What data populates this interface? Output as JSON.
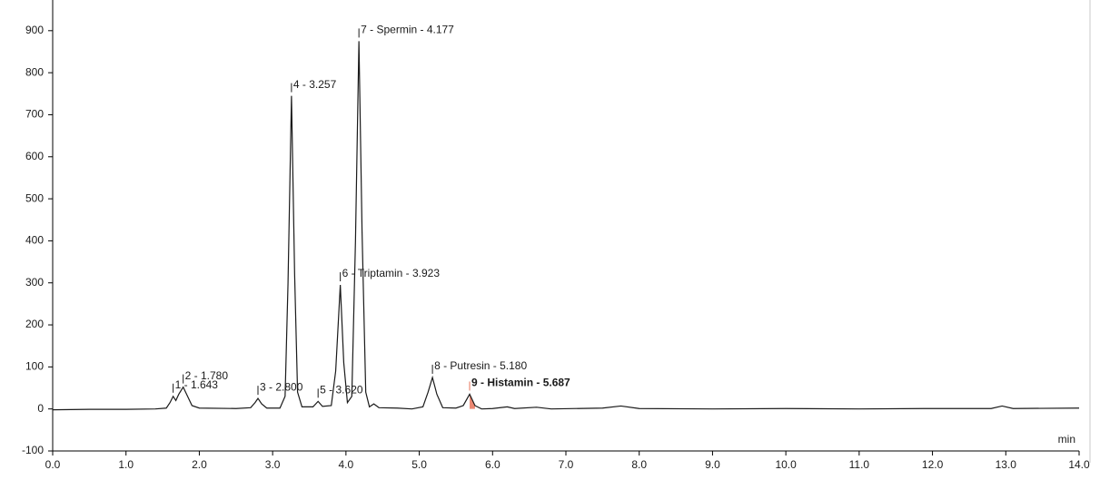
{
  "chart_data": {
    "type": "line",
    "xlabel": "min",
    "color": "#1a1a1a",
    "x": [
      0,
      0.5,
      1.0,
      1.4,
      1.55,
      1.6,
      1.643,
      1.68,
      1.72,
      1.78,
      1.84,
      1.9,
      2.0,
      2.5,
      2.7,
      2.76,
      2.8,
      2.85,
      2.92,
      3.1,
      3.17,
      3.21,
      3.257,
      3.3,
      3.34,
      3.4,
      3.55,
      3.62,
      3.68,
      3.8,
      3.86,
      3.923,
      3.97,
      4.02,
      4.08,
      4.13,
      4.177,
      4.22,
      4.27,
      4.32,
      4.38,
      4.45,
      4.7,
      4.9,
      5.05,
      5.12,
      5.18,
      5.24,
      5.32,
      5.5,
      5.6,
      5.687,
      5.76,
      5.85,
      6.0,
      6.2,
      6.3,
      6.6,
      6.8,
      7.5,
      7.75,
      8.0,
      9.0,
      10.0,
      11.0,
      12.0,
      12.8,
      12.95,
      13.1,
      14.0
    ],
    "values": [
      -2,
      -1,
      -1,
      0,
      2,
      15,
      30,
      20,
      35,
      52,
      30,
      8,
      2,
      1,
      3,
      15,
      25,
      12,
      2,
      2,
      30,
      300,
      745,
      320,
      40,
      5,
      5,
      18,
      6,
      8,
      90,
      295,
      110,
      15,
      30,
      400,
      875,
      420,
      40,
      5,
      12,
      3,
      2,
      0,
      5,
      40,
      75,
      35,
      3,
      2,
      8,
      35,
      8,
      0,
      1,
      5,
      1,
      4,
      0,
      2,
      7,
      1,
      0,
      1,
      0,
      1,
      1,
      7,
      1,
      2
    ],
    "xlim": [
      0,
      14
    ],
    "ylim": [
      -100,
      973
    ],
    "xticks": [
      {
        "value": 0,
        "label": "0.0"
      },
      {
        "value": 1,
        "label": "1.0"
      },
      {
        "value": 2,
        "label": "2.0"
      },
      {
        "value": 3,
        "label": "3.0"
      },
      {
        "value": 4,
        "label": "4.0"
      },
      {
        "value": 5,
        "label": "5.0"
      },
      {
        "value": 6,
        "label": "6.0"
      },
      {
        "value": 7,
        "label": "7.0"
      },
      {
        "value": 8,
        "label": "8.0"
      },
      {
        "value": 9,
        "label": "9.0"
      },
      {
        "value": 10,
        "label": "10.0"
      },
      {
        "value": 11,
        "label": "11.0"
      },
      {
        "value": 12,
        "label": "12.0"
      },
      {
        "value": 13,
        "label": "13.0"
      },
      {
        "value": 14,
        "label": "14.0"
      }
    ],
    "yticks": [
      -100,
      0,
      100,
      200,
      300,
      400,
      500,
      600,
      700,
      800,
      900
    ],
    "annotations": [
      {
        "text": "1 - 1.643",
        "x": 1.643,
        "y": 30,
        "color": "#1a1a1a"
      },
      {
        "text": "2 - 1.780",
        "x": 1.78,
        "y": 52,
        "color": "#1a1a1a"
      },
      {
        "text": "3 - 2.800",
        "x": 2.8,
        "y": 25,
        "color": "#1a1a1a"
      },
      {
        "text": "4 - 3.257",
        "x": 3.257,
        "y": 745,
        "color": "#1a1a1a"
      },
      {
        "text": "5 - 3.620",
        "x": 3.62,
        "y": 18,
        "color": "#1a1a1a"
      },
      {
        "text": "6 - Triptamin - 3.923",
        "x": 3.923,
        "y": 295,
        "color": "#1a1a1a"
      },
      {
        "text": "7 - Spermin - 4.177",
        "x": 4.177,
        "y": 875,
        "color": "#1a1a1a"
      },
      {
        "text": "8 - Putresin - 5.180",
        "x": 5.18,
        "y": 75,
        "color": "#1a1a1a"
      },
      {
        "text": "9 - Histamin - 5.687",
        "x": 5.687,
        "y": 35,
        "color": "#e8735a",
        "bold": true,
        "filled": true
      }
    ]
  }
}
